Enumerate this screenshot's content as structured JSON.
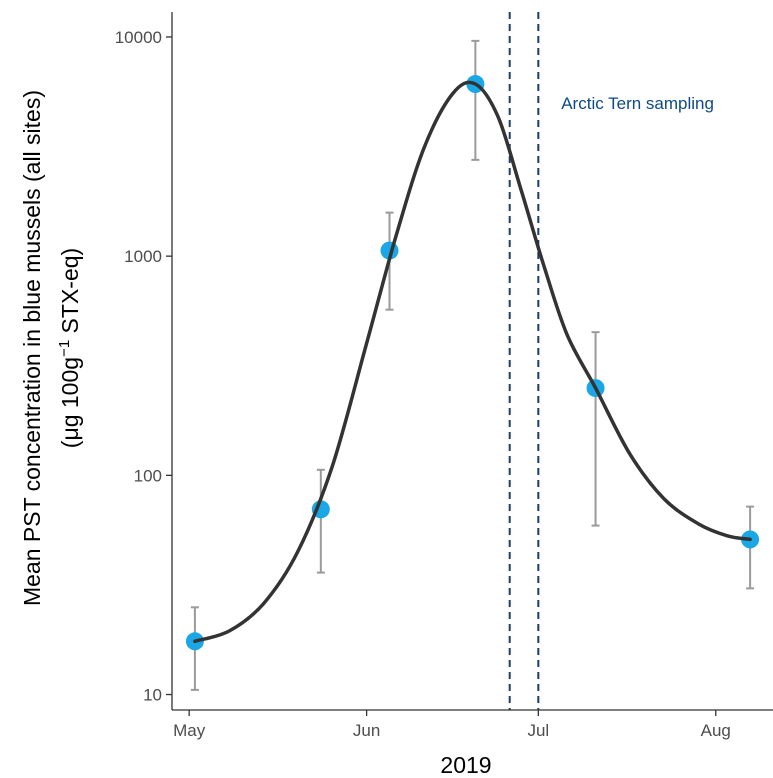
{
  "chart_data": {
    "type": "scatter",
    "x_axis": {
      "label": "2019",
      "ticks": [
        {
          "date": "2019-05-01",
          "label": "May"
        },
        {
          "date": "2019-06-01",
          "label": "Jun"
        },
        {
          "date": "2019-07-01",
          "label": "Jul"
        },
        {
          "date": "2019-08-01",
          "label": "Aug"
        }
      ],
      "range": [
        "2019-04-28",
        "2019-08-11"
      ]
    },
    "y_axis": {
      "label_line1": "Mean PST concentration in blue mussels (all sites)",
      "label_line2_prefix": "(μg 100g",
      "label_line2_sup": "−1",
      "label_line2_suffix": " STX-eq)",
      "scale": "log10",
      "range": [
        8.5,
        13000
      ],
      "ticks": [
        {
          "value": 10,
          "label": "10"
        },
        {
          "value": 100,
          "label": "100"
        },
        {
          "value": 1000,
          "label": "1000"
        },
        {
          "value": 10000,
          "label": "10000"
        }
      ]
    },
    "points": [
      {
        "date": "2019-05-02",
        "y": 17.5,
        "ylow": 10.5,
        "yhigh": 25
      },
      {
        "date": "2019-05-24",
        "y": 70,
        "ylow": 36,
        "yhigh": 106
      },
      {
        "date": "2019-06-05",
        "y": 1060,
        "ylow": 570,
        "yhigh": 1580
      },
      {
        "date": "2019-06-20",
        "y": 6100,
        "ylow": 2750,
        "yhigh": 9600
      },
      {
        "date": "2019-07-11",
        "y": 250,
        "ylow": 59,
        "yhigh": 450
      },
      {
        "date": "2019-08-07",
        "y": 51,
        "ylow": 30.5,
        "yhigh": 72
      }
    ],
    "fit_curve": {
      "color": "#333333",
      "points": [
        {
          "date": "2019-05-02",
          "y": 17.5
        },
        {
          "date": "2019-05-08",
          "y": 19.5
        },
        {
          "date": "2019-05-14",
          "y": 26
        },
        {
          "date": "2019-05-20",
          "y": 45
        },
        {
          "date": "2019-05-26",
          "y": 110
        },
        {
          "date": "2019-06-01",
          "y": 400
        },
        {
          "date": "2019-06-06",
          "y": 1200
        },
        {
          "date": "2019-06-11",
          "y": 3100
        },
        {
          "date": "2019-06-16",
          "y": 5500
        },
        {
          "date": "2019-06-20",
          "y": 6100
        },
        {
          "date": "2019-06-24",
          "y": 4300
        },
        {
          "date": "2019-06-28",
          "y": 2000
        },
        {
          "date": "2019-07-02",
          "y": 900
        },
        {
          "date": "2019-07-06",
          "y": 440
        },
        {
          "date": "2019-07-11",
          "y": 250
        },
        {
          "date": "2019-07-17",
          "y": 125
        },
        {
          "date": "2019-07-23",
          "y": 78
        },
        {
          "date": "2019-07-29",
          "y": 60
        },
        {
          "date": "2019-08-03",
          "y": 53
        },
        {
          "date": "2019-08-07",
          "y": 51
        }
      ]
    },
    "vlines": [
      {
        "date": "2019-06-26"
      },
      {
        "date": "2019-07-01"
      }
    ],
    "annotation": {
      "text": "Arctic Tern sampling",
      "date": "2019-07-05",
      "y": 4700,
      "color": "#0e4a86"
    },
    "colors": {
      "point": "#1ba7e6",
      "errorbar": "#9a9a9a",
      "vline": "#1a3f6b",
      "axis": "#333333"
    },
    "grid": false,
    "legend": "none"
  }
}
